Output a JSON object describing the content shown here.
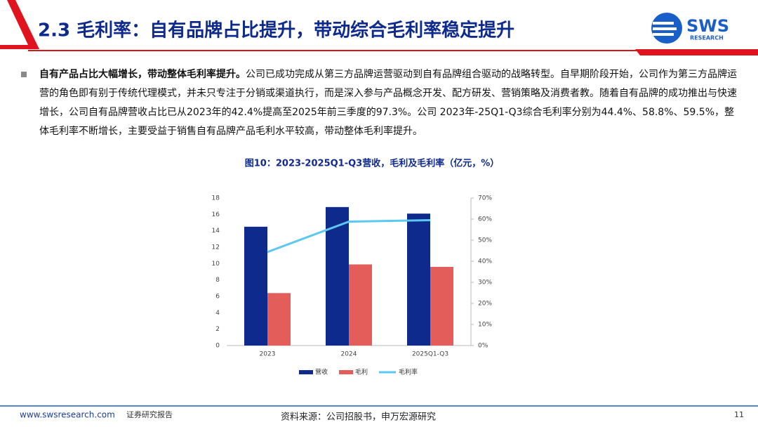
{
  "header": {
    "title": "2.3 毛利率：自有品牌占比提升，带动综合毛利率稳定提升",
    "logo": "SWS",
    "logo_sub": "RESEARCH"
  },
  "body": {
    "lead": "自有产品占比大幅增长，带动整体毛利率提升。",
    "text": "公司已成功完成从第三方品牌运营驱动到自有品牌组合驱动的战略转型。自早期阶段开始，公司作为第三方品牌运营的角色即有别于传统代理模式，并未只专注于分销或渠道执行，而是深入参与产品概念开发、配方研发、营销策略及消费者教。随着自有品牌的成功推出与快速增长，公司自有品牌营收占比已从2023年的42.4%提高至2025年前三季度的97.3%。公司 2023年-25Q1-Q3综合毛利率分别为44.4%、58.8%、59.5%，整体毛利率不断增长，主要受益于销售自有品牌产品毛利水平较高，带动整体毛利率提升。"
  },
  "chart_data": {
    "type": "bar",
    "title": "图10：2023-2025Q1-Q3营收，毛利及毛利率（亿元，%）",
    "categories": [
      "2023",
      "2024",
      "2025Q1-Q3"
    ],
    "series": [
      {
        "name": "营收",
        "color": "#0e2a8c",
        "type": "bar",
        "values": [
          14.5,
          16.9,
          16.1
        ]
      },
      {
        "name": "毛利",
        "color": "#e35d5b",
        "type": "bar",
        "values": [
          6.4,
          9.9,
          9.6
        ]
      },
      {
        "name": "毛利率",
        "color": "#5cc8f2",
        "type": "line",
        "axis": "y2",
        "values": [
          44.4,
          58.8,
          59.5
        ]
      }
    ],
    "ylim": [
      0,
      18
    ],
    "yticks": [
      0,
      2,
      4,
      6,
      8,
      10,
      12,
      14,
      16,
      18
    ],
    "y2lim": [
      0,
      70
    ],
    "y2ticks": [
      {
        "value": 0,
        "label": "0%"
      },
      {
        "value": 10,
        "label": "10%"
      },
      {
        "value": 20,
        "label": "20%"
      },
      {
        "value": 30,
        "label": "30%"
      },
      {
        "value": 40,
        "label": "40%"
      },
      {
        "value": 50,
        "label": "50%"
      },
      {
        "value": 60,
        "label": "60%"
      },
      {
        "value": 70,
        "label": "70%"
      }
    ],
    "legend": "bottom"
  },
  "footer": {
    "site": "www.swsresearch.com",
    "label": "证券研究报告",
    "source": "资料来源：公司招股书，申万宏源研究",
    "page": "11"
  }
}
